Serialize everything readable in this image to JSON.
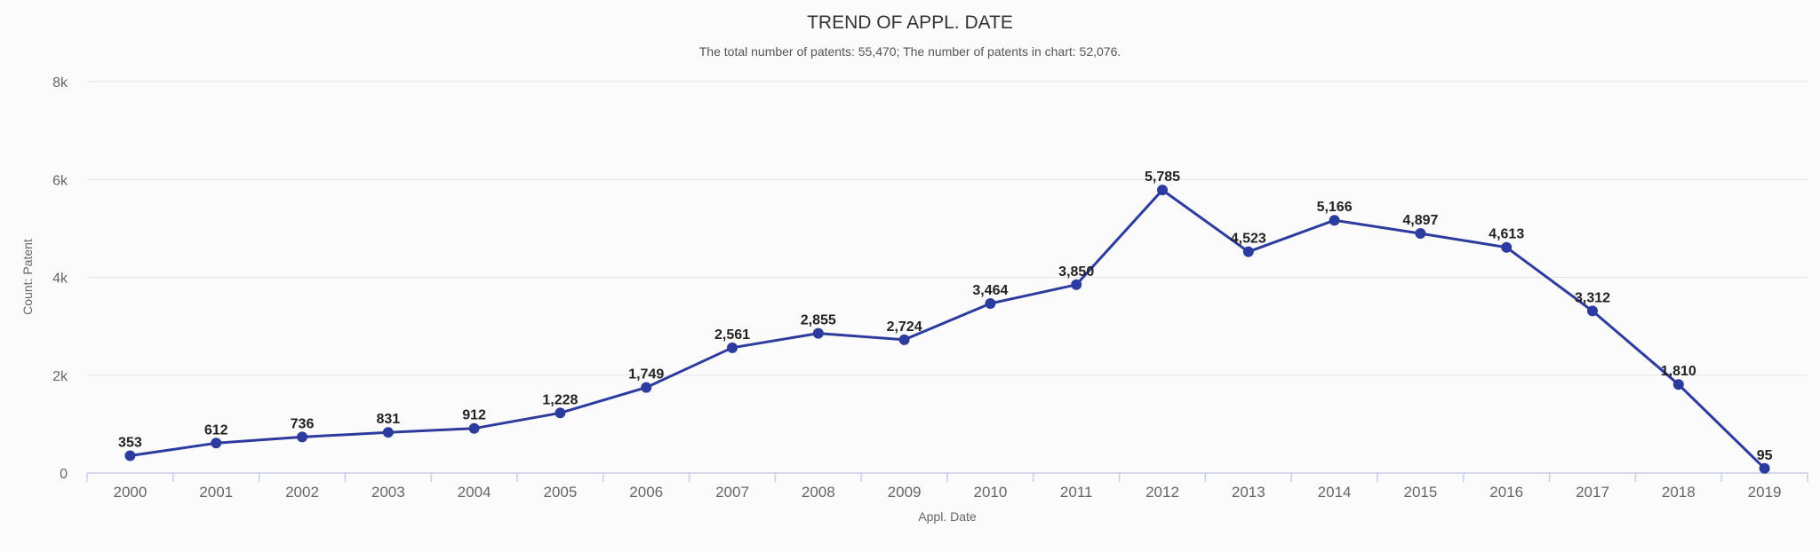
{
  "chart_data": {
    "type": "line",
    "title": "TREND OF APPL. DATE",
    "subtitle": "The total number of patents: 55,470; The number of patents in chart: 52,076.",
    "xlabel": "Appl. Date",
    "ylabel": "Count: Patent",
    "categories": [
      "2000",
      "2001",
      "2002",
      "2003",
      "2004",
      "2005",
      "2006",
      "2007",
      "2008",
      "2009",
      "2010",
      "2011",
      "2012",
      "2013",
      "2014",
      "2015",
      "2016",
      "2017",
      "2018",
      "2019"
    ],
    "series": [
      {
        "values": [
          353,
          612,
          736,
          831,
          912,
          1228,
          1749,
          2561,
          2855,
          2724,
          3464,
          3850,
          5785,
          4523,
          5166,
          4897,
          4613,
          3312,
          1810,
          95
        ],
        "data_labels": [
          "353",
          "612",
          "736",
          "831",
          "912",
          "1,228",
          "1,749",
          "2,561",
          "2,855",
          "2,724",
          "3,464",
          "3,850",
          "5,785",
          "4,523",
          "5,166",
          "4,897",
          "4,613",
          "3,312",
          "1,810",
          "95"
        ]
      }
    ],
    "ylim": [
      0,
      8000
    ],
    "yticks": [
      0,
      2000,
      4000,
      6000,
      8000
    ],
    "ytick_labels": [
      "0",
      "2k",
      "4k",
      "6k",
      "8k"
    ],
    "grid": true,
    "colors": {
      "line": "#2c3b9e",
      "grid": "#e3e3e8",
      "axis": "#c8cde8"
    }
  }
}
